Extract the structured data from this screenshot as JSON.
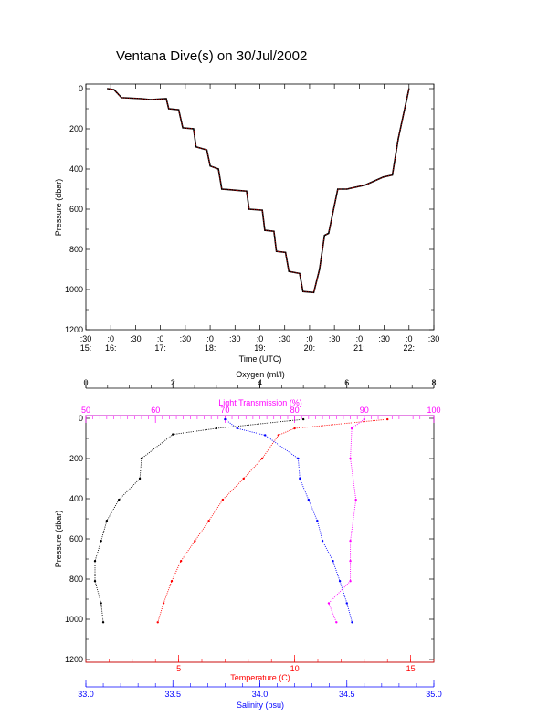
{
  "title": "Ventana Dive(s) on 30/Jul/2002",
  "colors": {
    "frame": "#000000",
    "temperature": "#ff0000",
    "salinity": "#0000ff",
    "oxygen": "#000000",
    "light": "#ff00ff",
    "track_overlay": "#ff0000"
  },
  "chart_data": [
    {
      "type": "line",
      "xlabel": "Time (UTC)",
      "ylabel": "Pressure (dbar)",
      "ylim": [
        1200,
        0
      ],
      "xlim": [
        "15:30",
        "22:30"
      ],
      "y_ticks": [
        "0",
        "200",
        "400",
        "600",
        "800",
        "1000",
        "1200"
      ],
      "x_ticks": [
        {
          "top": ":30",
          "bottom": "15:"
        },
        {
          "top": ":0",
          "bottom": "16:"
        },
        {
          "top": ":30",
          "bottom": ""
        },
        {
          "top": ":0",
          "bottom": "17:"
        },
        {
          "top": ":30",
          "bottom": ""
        },
        {
          "top": ":0",
          "bottom": "18:"
        },
        {
          "top": ":30",
          "bottom": ""
        },
        {
          "top": ":0",
          "bottom": "19:"
        },
        {
          "top": ":30",
          "bottom": ""
        },
        {
          "top": ":0",
          "bottom": "20:"
        },
        {
          "top": ":30",
          "bottom": ""
        },
        {
          "top": ":0",
          "bottom": "21:"
        },
        {
          "top": ":30",
          "bottom": ""
        },
        {
          "top": ":0",
          "bottom": "22:"
        },
        {
          "top": ":30",
          "bottom": ""
        }
      ],
      "series": [
        {
          "x": [
            "15:56",
            "16:04",
            "16:13",
            "16:37",
            "16:48",
            "17:07",
            "17:10",
            "17:22",
            "17:27",
            "17:40",
            "17:43",
            "17:56",
            "18:00",
            "18:10",
            "18:14",
            "18:44",
            "18:47",
            "19:03",
            "19:06",
            "19:17",
            "19:20",
            "19:31",
            "19:35",
            "19:48",
            "19:52",
            "20:05",
            "20:12",
            "20:18",
            "20:23",
            "20:34",
            "20:45",
            "21:07",
            "21:29",
            "21:40",
            "21:47",
            "22:00"
          ],
          "y": [
            0,
            5,
            45,
            50,
            55,
            50,
            100,
            105,
            195,
            200,
            290,
            305,
            385,
            400,
            500,
            510,
            600,
            605,
            705,
            710,
            810,
            815,
            910,
            920,
            1010,
            1015,
            900,
            730,
            720,
            500,
            500,
            480,
            440,
            430,
            250,
            0
          ]
        }
      ]
    },
    {
      "type": "scatter",
      "ylabel": "Pressure (dbar)",
      "ylim": [
        1200,
        0
      ],
      "y_ticks": [
        "0",
        "200",
        "400",
        "600",
        "800",
        "1000",
        "1200"
      ],
      "axes": {
        "oxygen": {
          "label": "Oxygen (ml/l)",
          "range": [
            0,
            8
          ],
          "ticks": [
            "0",
            "2",
            "4",
            "6",
            "8"
          ]
        },
        "light": {
          "label": "Light Transmission (%)",
          "range": [
            50,
            100
          ],
          "ticks": [
            "50",
            "60",
            "70",
            "80",
            "90",
            "100"
          ]
        },
        "temperature": {
          "label": "Temperature (C)",
          "range": [
            1,
            16
          ],
          "ticks": [
            "5",
            "10",
            "15"
          ]
        },
        "salinity": {
          "label": "Salinity (psu)",
          "range": [
            33.0,
            35.0
          ],
          "ticks": [
            "33.0",
            "33.5",
            "34.0",
            "34.5",
            "35.0"
          ]
        }
      },
      "series": [
        {
          "axis": "temperature",
          "pressure": [
            5,
            50,
            84,
            200,
            300,
            405,
            510,
            610,
            710,
            810,
            920,
            1015
          ],
          "values": [
            14.0,
            10.0,
            9.3,
            8.6,
            7.8,
            6.9,
            6.3,
            5.7,
            5.1,
            4.7,
            4.35,
            4.1
          ]
        },
        {
          "axis": "salinity",
          "pressure": [
            5,
            50,
            84,
            200,
            300,
            405,
            510,
            610,
            710,
            810,
            920,
            1015
          ],
          "values": [
            33.8,
            33.87,
            34.03,
            34.22,
            34.23,
            34.28,
            34.33,
            34.36,
            34.42,
            34.46,
            34.5,
            34.53
          ]
        },
        {
          "axis": "oxygen",
          "pressure": [
            5,
            50,
            80,
            200,
            300,
            405,
            510,
            610,
            710,
            810,
            920,
            1015
          ],
          "values": [
            5.0,
            3.0,
            2.0,
            1.28,
            1.24,
            0.76,
            0.48,
            0.35,
            0.21,
            0.21,
            0.35,
            0.4
          ]
        },
        {
          "axis": "light",
          "pressure": [
            5,
            50,
            200,
            405,
            610,
            710,
            810,
            920,
            1015
          ],
          "values": [
            90.0,
            88.2,
            88.0,
            88.8,
            88.0,
            88.0,
            88.0,
            84.9,
            86.0
          ]
        }
      ]
    }
  ]
}
